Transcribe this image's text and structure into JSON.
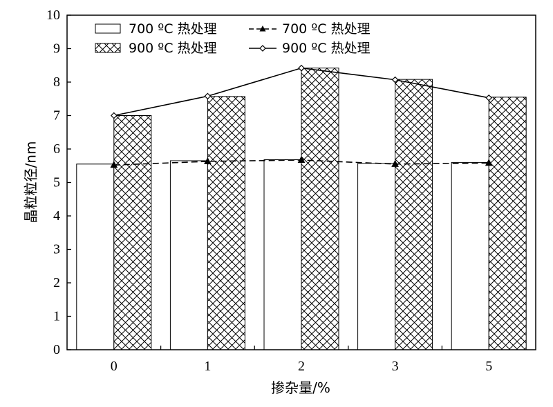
{
  "chart_data": {
    "type": "bar",
    "xlabel": "掺杂量/%",
    "ylabel": "晶粒粒径/nm",
    "ylim": [
      0,
      10
    ],
    "yticks": [
      0,
      1,
      2,
      3,
      4,
      5,
      6,
      7,
      8,
      9,
      10
    ],
    "categories": [
      "0",
      "1",
      "2",
      "3",
      "5"
    ],
    "grid": false,
    "legend_position": "top",
    "series": [
      {
        "name": "700 ºC 热处理",
        "kind": "bar",
        "style": "white",
        "values": [
          5.55,
          5.65,
          5.68,
          5.57,
          5.6
        ]
      },
      {
        "name": "900 ºC 热处理",
        "kind": "bar",
        "style": "crosshatch",
        "values": [
          7.0,
          7.57,
          8.42,
          8.08,
          7.55
        ]
      },
      {
        "name": "700 ºC 热处理",
        "kind": "line",
        "style": "dashed-triangle",
        "values": [
          5.52,
          5.63,
          5.67,
          5.55,
          5.58
        ]
      },
      {
        "name": "900 ºC 热处理",
        "kind": "line",
        "style": "solid-diamond",
        "values": [
          7.0,
          7.58,
          8.42,
          8.07,
          7.53
        ]
      }
    ],
    "colors": {
      "axis": "#000000",
      "bar_fill": "#ffffff",
      "hatch": "#000000"
    }
  }
}
